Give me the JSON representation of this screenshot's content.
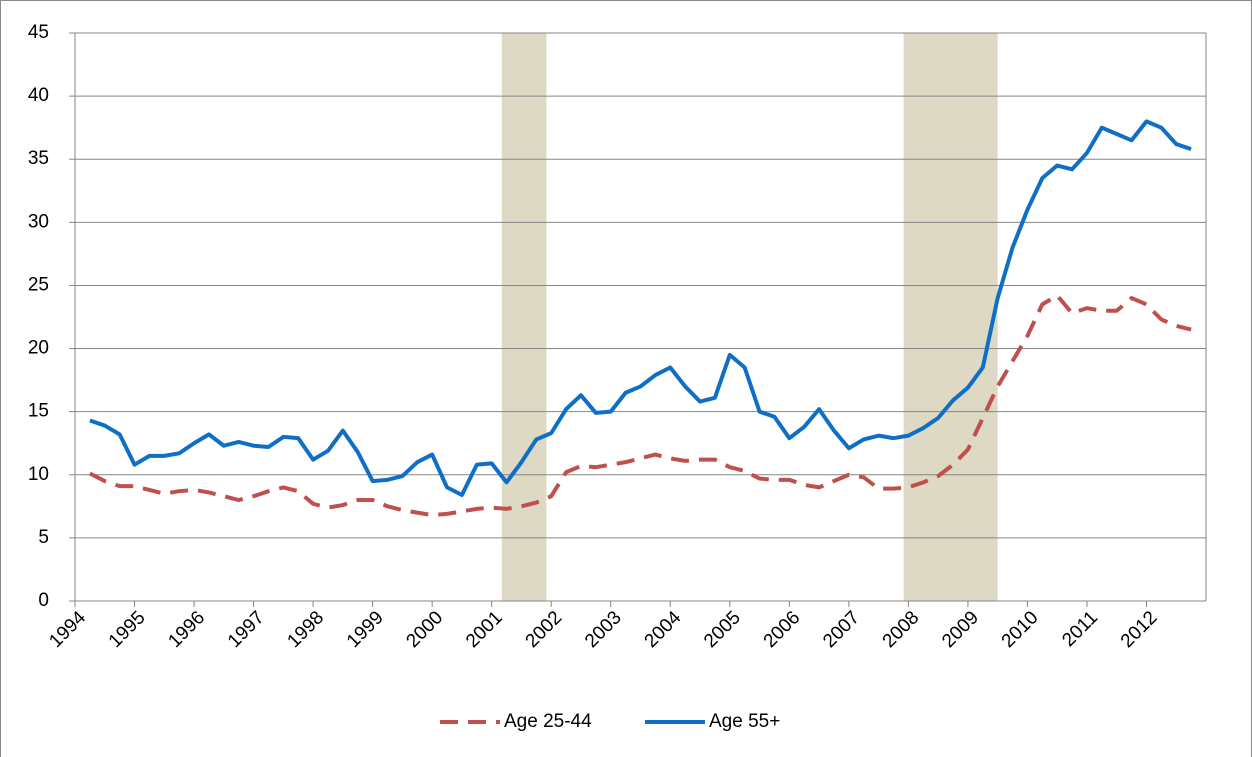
{
  "chart_data": {
    "type": "line",
    "x": [
      1994.25,
      1994.5,
      1994.75,
      1995,
      1995.25,
      1995.5,
      1995.75,
      1996,
      1996.25,
      1996.5,
      1996.75,
      1997,
      1997.25,
      1997.5,
      1997.75,
      1998,
      1998.25,
      1998.5,
      1998.75,
      1999,
      1999.25,
      1999.5,
      1999.75,
      2000,
      2000.25,
      2000.5,
      2000.75,
      2001,
      2001.25,
      2001.5,
      2001.75,
      2002,
      2002.25,
      2002.5,
      2002.75,
      2003,
      2003.25,
      2003.5,
      2003.75,
      2004,
      2004.25,
      2004.5,
      2004.75,
      2005,
      2005.25,
      2005.5,
      2005.75,
      2006,
      2006.25,
      2006.5,
      2006.75,
      2007,
      2007.25,
      2007.5,
      2007.75,
      2008,
      2008.25,
      2008.5,
      2008.75,
      2009,
      2009.25,
      2009.5,
      2009.75,
      2010,
      2010.25,
      2010.5,
      2010.75,
      2011,
      2011.25,
      2011.5,
      2011.75,
      2012,
      2012.25,
      2012.5,
      2012.75
    ],
    "series": [
      {
        "name": "Age 25-44",
        "color": "#c0504d",
        "dash": true,
        "values": [
          10.1,
          9.5,
          9.1,
          9.1,
          8.8,
          8.5,
          8.7,
          8.8,
          8.6,
          8.3,
          8.0,
          8.3,
          8.7,
          9.0,
          8.7,
          7.7,
          7.4,
          7.6,
          8.0,
          8.0,
          7.5,
          7.2,
          7.0,
          6.8,
          6.9,
          7.1,
          7.3,
          7.4,
          7.3,
          7.5,
          7.8,
          8.3,
          10.2,
          10.7,
          10.6,
          10.8,
          11.0,
          11.3,
          11.6,
          11.3,
          11.1,
          11.2,
          11.2,
          10.6,
          10.3,
          9.7,
          9.6,
          9.6,
          9.2,
          9.0,
          9.5,
          10.0,
          9.8,
          8.9,
          8.9,
          9.0,
          9.4,
          9.9,
          10.8,
          12.0,
          14.5,
          17.0,
          19.0,
          21.0,
          23.5,
          24.2,
          22.8,
          23.2,
          23.0,
          23.0,
          24.0,
          23.5,
          22.3,
          21.8,
          21.5
        ]
      },
      {
        "name": "Age 55+",
        "color": "#0f6fc6",
        "dash": false,
        "values": [
          14.3,
          13.9,
          13.2,
          10.8,
          11.5,
          11.5,
          11.7,
          12.5,
          13.2,
          12.3,
          12.6,
          12.3,
          12.2,
          13.0,
          12.9,
          11.2,
          11.9,
          13.5,
          11.8,
          9.5,
          9.6,
          9.9,
          11.0,
          11.6,
          9.0,
          8.4,
          10.8,
          10.9,
          9.4,
          11.0,
          12.8,
          13.3,
          15.2,
          16.3,
          14.9,
          15.0,
          16.5,
          17.0,
          17.9,
          18.5,
          17.0,
          15.8,
          16.1,
          19.5,
          18.5,
          15.0,
          14.6,
          12.9,
          13.8,
          15.2,
          13.5,
          12.1,
          12.8,
          13.1,
          12.9,
          13.1,
          13.7,
          14.5,
          15.9,
          16.9,
          18.5,
          24.0,
          28.0,
          31.0,
          33.5,
          34.5,
          34.2,
          35.5,
          37.5,
          37.0,
          36.5,
          38.0,
          37.5,
          36.2,
          35.8
        ]
      }
    ],
    "recessions": [
      [
        2001.17,
        2001.92
      ],
      [
        2007.92,
        2009.5
      ]
    ],
    "recession_color": "#ddd9c4",
    "xlim": [
      1994,
      2013
    ],
    "xticks": [
      1994,
      1995,
      1996,
      1997,
      1998,
      1999,
      2000,
      2001,
      2002,
      2003,
      2004,
      2005,
      2006,
      2007,
      2008,
      2009,
      2010,
      2011,
      2012
    ],
    "ylim": [
      0,
      45
    ],
    "yticks": [
      0,
      5,
      10,
      15,
      20,
      25,
      30,
      35,
      40,
      45
    ],
    "grid": true,
    "legend": "bottom"
  }
}
